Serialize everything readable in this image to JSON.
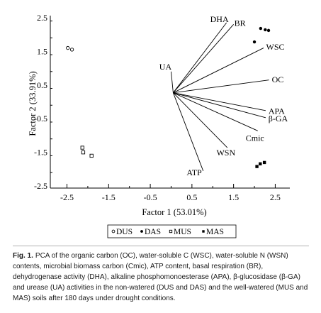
{
  "chart_data": {
    "type": "scatter",
    "xlabel": "Factor 1 (53.01%)",
    "ylabel": "Factor 2 (33.91%)",
    "xlim": [
      -2.9,
      2.85
    ],
    "ylim": [
      -2.56,
      2.56
    ],
    "xticks": [
      -2.5,
      -1.5,
      -0.5,
      0.5,
      1.5,
      2.5
    ],
    "yticks": [
      -2.5,
      -1.5,
      -0.5,
      0.5,
      1.5,
      2.5
    ],
    "vector_origin": [
      0.05,
      0.27
    ],
    "loadings": [
      {
        "label": "DHA",
        "x": 1.33,
        "y": 2.35
      },
      {
        "label": "BR",
        "x": 1.5,
        "y": 2.3
      },
      {
        "label": "WSC",
        "x": 2.22,
        "y": 1.6
      },
      {
        "label": "OC",
        "x": 2.35,
        "y": 0.65
      },
      {
        "label": "APA",
        "x": 2.27,
        "y": -0.26
      },
      {
        "label": "β-GA",
        "x": 2.27,
        "y": -0.47
      },
      {
        "label": "Cmic",
        "x": 2.08,
        "y": -0.86
      },
      {
        "label": "WSN",
        "x": 1.35,
        "y": -1.36
      },
      {
        "label": "ATP",
        "x": 0.77,
        "y": -2.05
      },
      {
        "label": "UA",
        "x": 0.0,
        "y": 0.9
      }
    ],
    "series": [
      {
        "name": "DUS",
        "marker": "open-circle",
        "points": [
          [
            -2.48,
            1.6
          ],
          [
            -2.38,
            1.55
          ]
        ]
      },
      {
        "name": "DAS",
        "marker": "filled-circle",
        "points": [
          [
            2.15,
            2.18
          ],
          [
            2.26,
            2.14
          ],
          [
            2.34,
            2.12
          ],
          [
            2.0,
            1.78
          ]
        ]
      },
      {
        "name": "MUS",
        "marker": "open-square",
        "points": [
          [
            -2.13,
            -1.36
          ],
          [
            -2.11,
            -1.5
          ],
          [
            -1.91,
            -1.6
          ]
        ]
      },
      {
        "name": "MAS",
        "marker": "filled-square",
        "points": [
          [
            2.06,
            -1.92
          ],
          [
            2.14,
            -1.84
          ],
          [
            2.24,
            -1.8
          ]
        ]
      }
    ]
  },
  "caption": {
    "label": "Fig. 1.",
    "text": "PCA of the organic carbon (OC), water-soluble C (WSC), water-soluble N (WSN) contents, microbial biomass carbon (Cmic), ATP content, basal respiration (BR), dehydrogenase activity (DHA), alkaline phosphomonoesterase (APA), β-glucosidase (β-GA) and urease (UA) activities in the non-watered (DUS and DAS) and the well-watered (MUS and MAS) soils after 180 days under drought conditions."
  }
}
